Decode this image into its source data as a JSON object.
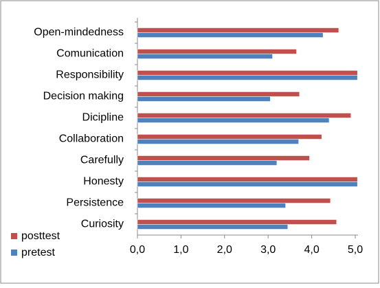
{
  "chart_data": {
    "type": "hbar",
    "categories": [
      "Open-mindedness",
      "Comunication",
      "Responsibility",
      "Decision making",
      "Dicipline",
      "Collaboration",
      "Carefully",
      "Honesty",
      "Persistence",
      "Curiosity"
    ],
    "series": [
      {
        "name": "posttest",
        "color": "#c0504d",
        "values": [
          4.62,
          3.65,
          5.05,
          3.72,
          4.9,
          4.23,
          3.95,
          5.05,
          4.43,
          4.57
        ]
      },
      {
        "name": "pretest",
        "color": "#4f81bd",
        "values": [
          4.26,
          3.1,
          5.05,
          3.05,
          4.4,
          3.7,
          3.2,
          5.05,
          3.4,
          3.45
        ]
      }
    ],
    "xlim": [
      0,
      5
    ],
    "xticks": [
      {
        "value": 0,
        "label": "0,0"
      },
      {
        "value": 1,
        "label": "1,0"
      },
      {
        "value": 2,
        "label": "2,0"
      },
      {
        "value": 3,
        "label": "3,0"
      },
      {
        "value": 4,
        "label": "4,0"
      },
      {
        "value": 5,
        "label": "5,0"
      }
    ],
    "grid": false,
    "legend": "bottom-left"
  }
}
